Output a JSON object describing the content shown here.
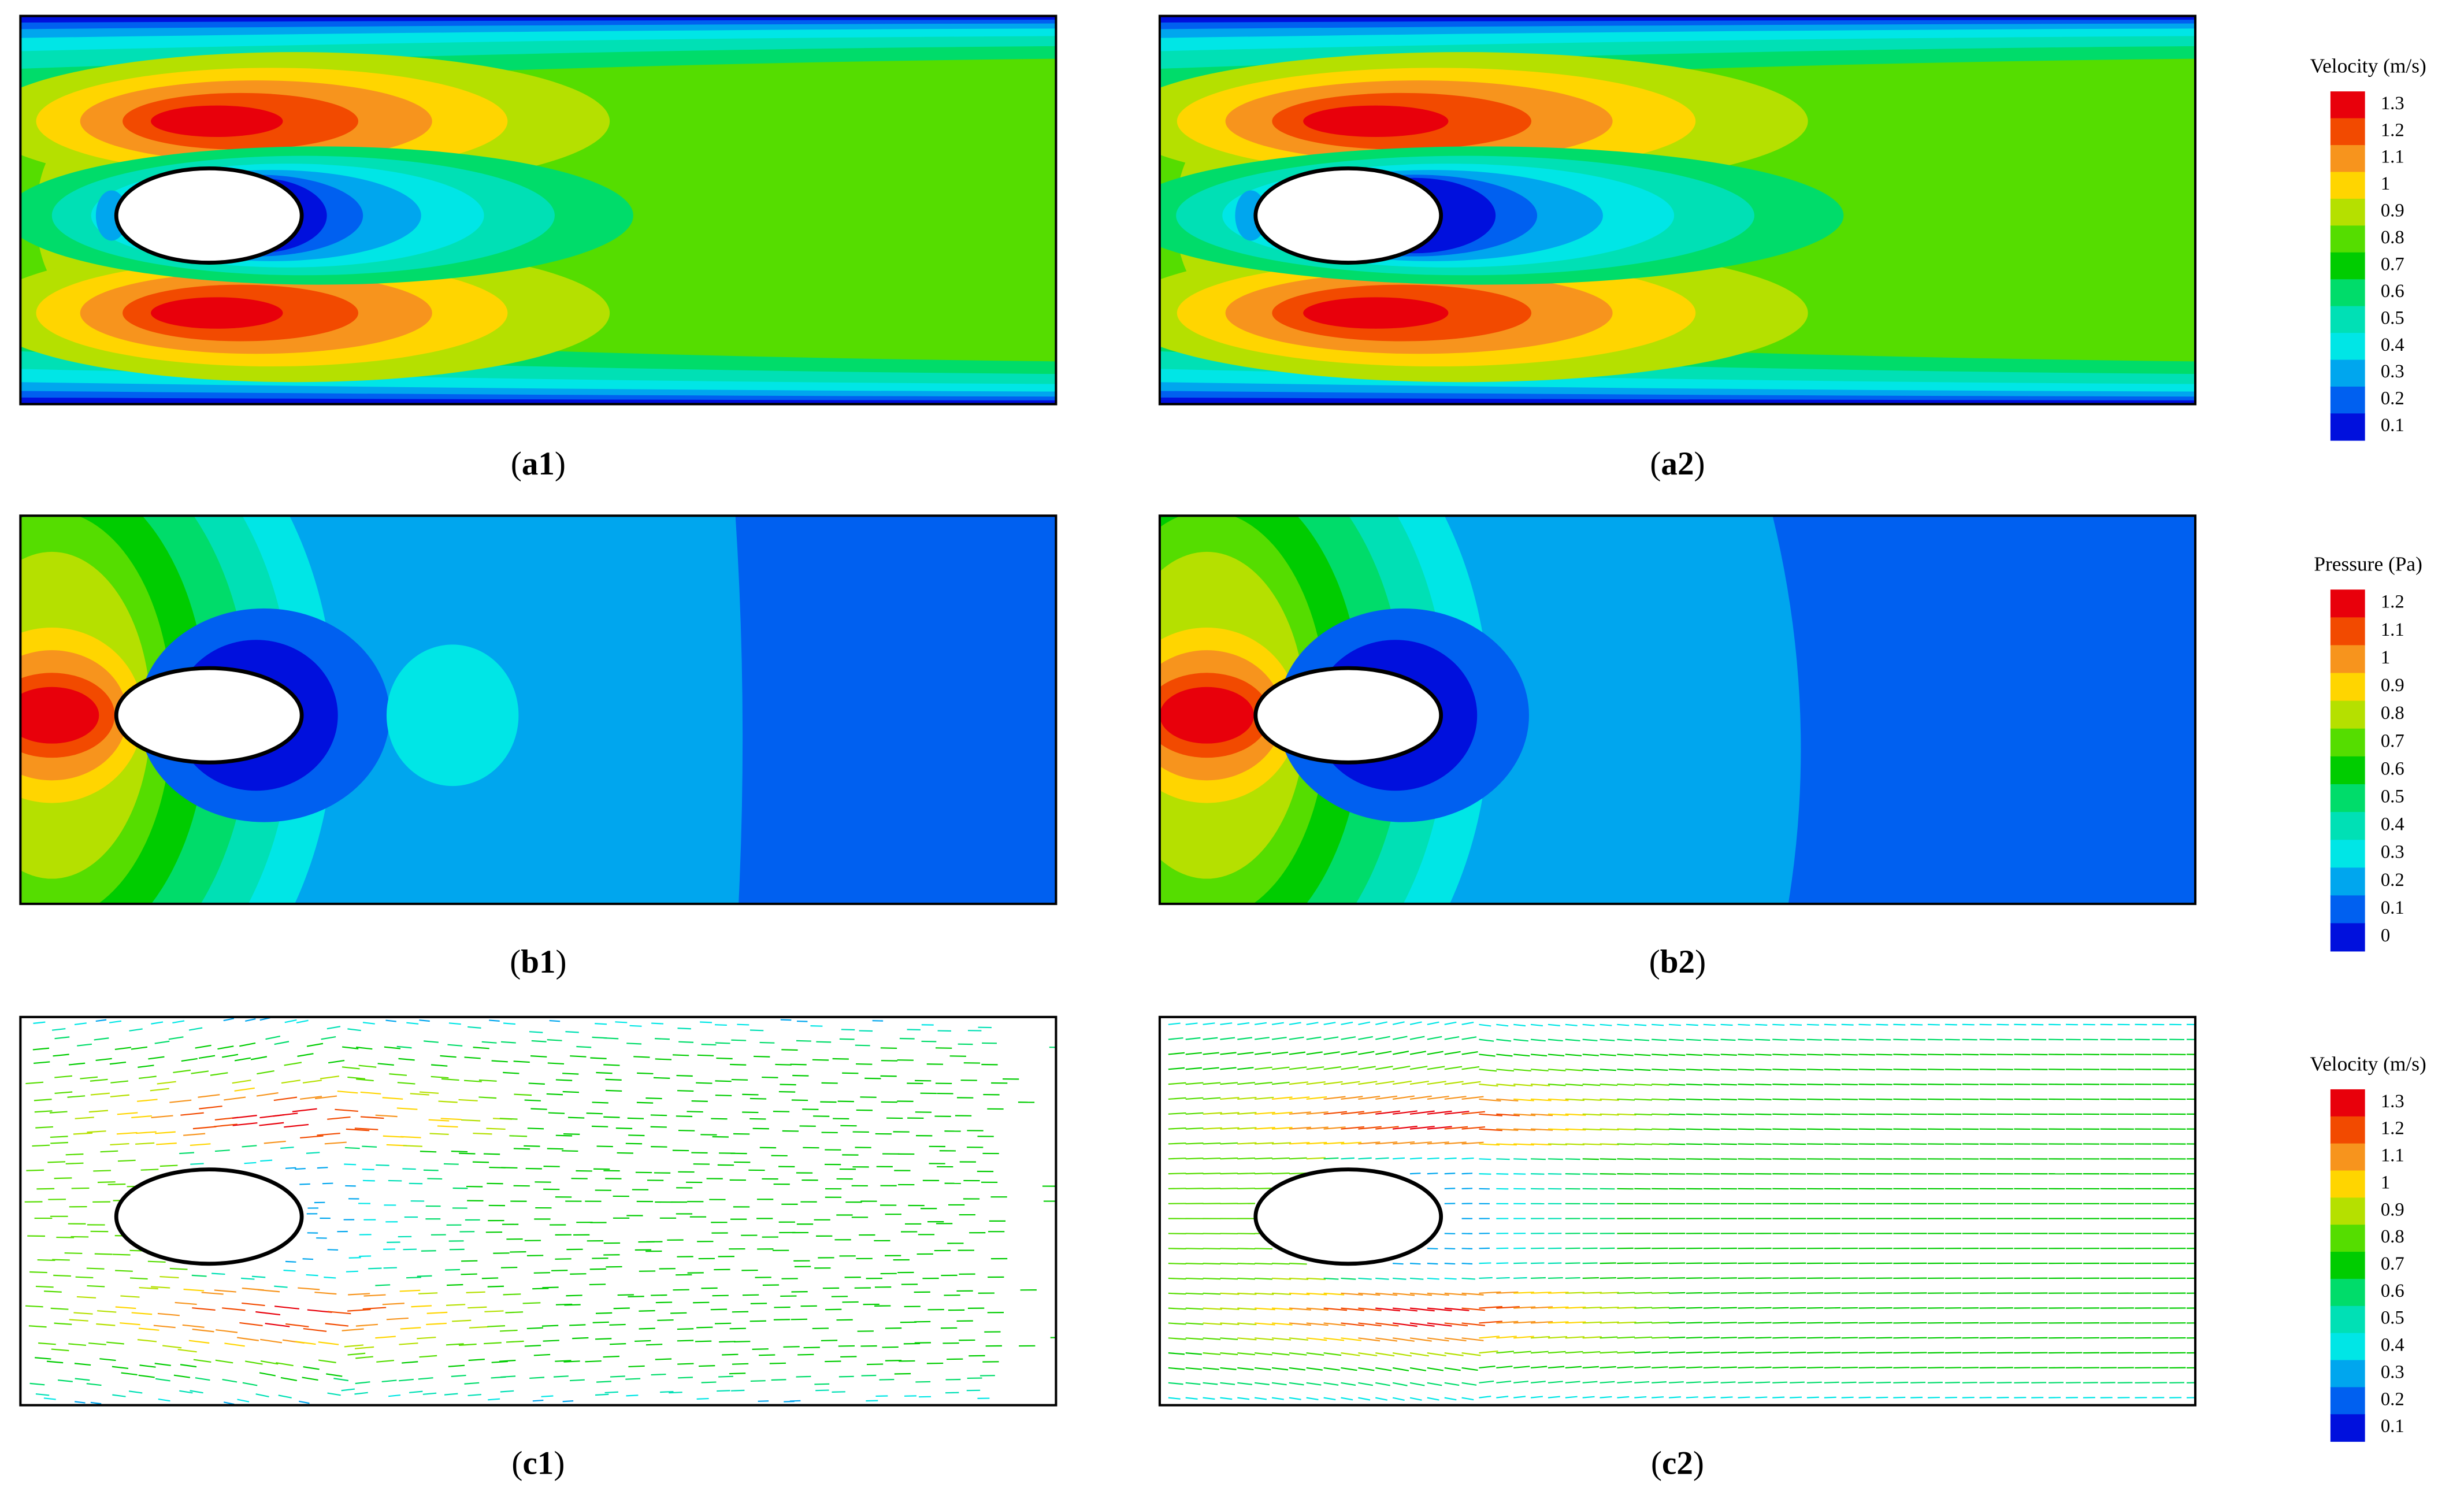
{
  "panels": [
    {
      "kind": "velocity",
      "label": [
        "(",
        "a1",
        ")"
      ]
    },
    {
      "kind": "velocity",
      "label": [
        "(",
        "a2",
        ")"
      ]
    },
    {
      "kind": "pressure",
      "label": [
        "(",
        "b1",
        ")"
      ]
    },
    {
      "kind": "pressure",
      "label": [
        "(",
        "b2",
        ")"
      ]
    },
    {
      "kind": "vector",
      "label": [
        "(",
        "c1",
        ")"
      ]
    },
    {
      "kind": "vector",
      "label": [
        "(",
        "c2",
        ")"
      ]
    }
  ],
  "legends": [
    {
      "title": "Velocity (m/s)",
      "ticks": [
        1.3,
        1.2,
        1.1,
        1,
        0.9,
        0.8,
        0.7,
        0.6,
        0.5,
        0.4,
        0.3,
        0.2,
        0.1
      ],
      "colors": [
        "#e8000b",
        "#f24a00",
        "#f7941d",
        "#ffd500",
        "#b5e000",
        "#55dd00",
        "#00cc00",
        "#00dc6a",
        "#00e0b5",
        "#00e6e6",
        "#00a6ee",
        "#0060f0",
        "#0010dd"
      ]
    },
    {
      "title": "Pressure (Pa)",
      "ticks": [
        1.2,
        1.1,
        1,
        0.9,
        0.8,
        0.7,
        0.6,
        0.5,
        0.4,
        0.3,
        0.2,
        0.1,
        0
      ],
      "colors": [
        "#e8000b",
        "#f24a00",
        "#f7941d",
        "#ffd500",
        "#b5e000",
        "#55dd00",
        "#00cc00",
        "#00dc6a",
        "#00e0b5",
        "#00e6e6",
        "#00a6ee",
        "#0060f0",
        "#0010dd"
      ]
    },
    {
      "title": "Velocity (m/s)",
      "ticks": [
        1.3,
        1.2,
        1.1,
        1,
        0.9,
        0.8,
        0.7,
        0.6,
        0.5,
        0.4,
        0.3,
        0.2,
        0.1
      ],
      "colors": [
        "#e8000b",
        "#f24a00",
        "#f7941d",
        "#ffd500",
        "#b5e000",
        "#55dd00",
        "#00cc00",
        "#00dc6a",
        "#00e0b5",
        "#00e6e6",
        "#00a6ee",
        "#0060f0",
        "#0010dd"
      ]
    }
  ]
}
